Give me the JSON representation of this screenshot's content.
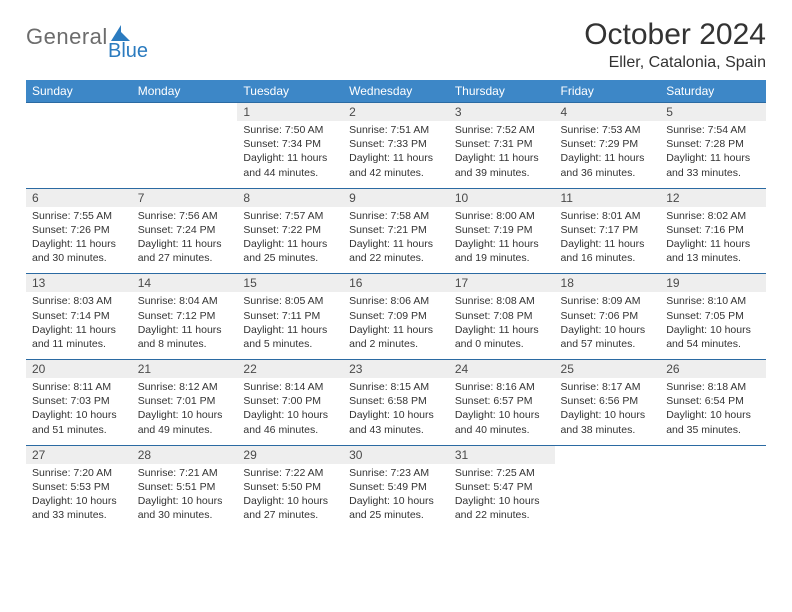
{
  "logo": {
    "part1": "General",
    "part2": "Blue"
  },
  "title": "October 2024",
  "subtitle": "Eller, Catalonia, Spain",
  "colors": {
    "headerBg": "#3d87c7",
    "headerText": "#ffffff",
    "dayBg": "#eeeeee",
    "rowBorder": "#2b6aa2",
    "bodyText": "#333333",
    "logoGray": "#6c6c6c",
    "logoBlue": "#2b7bbf"
  },
  "daysOfWeek": [
    "Sunday",
    "Monday",
    "Tuesday",
    "Wednesday",
    "Thursday",
    "Friday",
    "Saturday"
  ],
  "weeks": [
    [
      null,
      null,
      {
        "n": "1",
        "sr": "Sunrise: 7:50 AM",
        "ss": "Sunset: 7:34 PM",
        "dl": "Daylight: 11 hours and 44 minutes."
      },
      {
        "n": "2",
        "sr": "Sunrise: 7:51 AM",
        "ss": "Sunset: 7:33 PM",
        "dl": "Daylight: 11 hours and 42 minutes."
      },
      {
        "n": "3",
        "sr": "Sunrise: 7:52 AM",
        "ss": "Sunset: 7:31 PM",
        "dl": "Daylight: 11 hours and 39 minutes."
      },
      {
        "n": "4",
        "sr": "Sunrise: 7:53 AM",
        "ss": "Sunset: 7:29 PM",
        "dl": "Daylight: 11 hours and 36 minutes."
      },
      {
        "n": "5",
        "sr": "Sunrise: 7:54 AM",
        "ss": "Sunset: 7:28 PM",
        "dl": "Daylight: 11 hours and 33 minutes."
      }
    ],
    [
      {
        "n": "6",
        "sr": "Sunrise: 7:55 AM",
        "ss": "Sunset: 7:26 PM",
        "dl": "Daylight: 11 hours and 30 minutes."
      },
      {
        "n": "7",
        "sr": "Sunrise: 7:56 AM",
        "ss": "Sunset: 7:24 PM",
        "dl": "Daylight: 11 hours and 27 minutes."
      },
      {
        "n": "8",
        "sr": "Sunrise: 7:57 AM",
        "ss": "Sunset: 7:22 PM",
        "dl": "Daylight: 11 hours and 25 minutes."
      },
      {
        "n": "9",
        "sr": "Sunrise: 7:58 AM",
        "ss": "Sunset: 7:21 PM",
        "dl": "Daylight: 11 hours and 22 minutes."
      },
      {
        "n": "10",
        "sr": "Sunrise: 8:00 AM",
        "ss": "Sunset: 7:19 PM",
        "dl": "Daylight: 11 hours and 19 minutes."
      },
      {
        "n": "11",
        "sr": "Sunrise: 8:01 AM",
        "ss": "Sunset: 7:17 PM",
        "dl": "Daylight: 11 hours and 16 minutes."
      },
      {
        "n": "12",
        "sr": "Sunrise: 8:02 AM",
        "ss": "Sunset: 7:16 PM",
        "dl": "Daylight: 11 hours and 13 minutes."
      }
    ],
    [
      {
        "n": "13",
        "sr": "Sunrise: 8:03 AM",
        "ss": "Sunset: 7:14 PM",
        "dl": "Daylight: 11 hours and 11 minutes."
      },
      {
        "n": "14",
        "sr": "Sunrise: 8:04 AM",
        "ss": "Sunset: 7:12 PM",
        "dl": "Daylight: 11 hours and 8 minutes."
      },
      {
        "n": "15",
        "sr": "Sunrise: 8:05 AM",
        "ss": "Sunset: 7:11 PM",
        "dl": "Daylight: 11 hours and 5 minutes."
      },
      {
        "n": "16",
        "sr": "Sunrise: 8:06 AM",
        "ss": "Sunset: 7:09 PM",
        "dl": "Daylight: 11 hours and 2 minutes."
      },
      {
        "n": "17",
        "sr": "Sunrise: 8:08 AM",
        "ss": "Sunset: 7:08 PM",
        "dl": "Daylight: 11 hours and 0 minutes."
      },
      {
        "n": "18",
        "sr": "Sunrise: 8:09 AM",
        "ss": "Sunset: 7:06 PM",
        "dl": "Daylight: 10 hours and 57 minutes."
      },
      {
        "n": "19",
        "sr": "Sunrise: 8:10 AM",
        "ss": "Sunset: 7:05 PM",
        "dl": "Daylight: 10 hours and 54 minutes."
      }
    ],
    [
      {
        "n": "20",
        "sr": "Sunrise: 8:11 AM",
        "ss": "Sunset: 7:03 PM",
        "dl": "Daylight: 10 hours and 51 minutes."
      },
      {
        "n": "21",
        "sr": "Sunrise: 8:12 AM",
        "ss": "Sunset: 7:01 PM",
        "dl": "Daylight: 10 hours and 49 minutes."
      },
      {
        "n": "22",
        "sr": "Sunrise: 8:14 AM",
        "ss": "Sunset: 7:00 PM",
        "dl": "Daylight: 10 hours and 46 minutes."
      },
      {
        "n": "23",
        "sr": "Sunrise: 8:15 AM",
        "ss": "Sunset: 6:58 PM",
        "dl": "Daylight: 10 hours and 43 minutes."
      },
      {
        "n": "24",
        "sr": "Sunrise: 8:16 AM",
        "ss": "Sunset: 6:57 PM",
        "dl": "Daylight: 10 hours and 40 minutes."
      },
      {
        "n": "25",
        "sr": "Sunrise: 8:17 AM",
        "ss": "Sunset: 6:56 PM",
        "dl": "Daylight: 10 hours and 38 minutes."
      },
      {
        "n": "26",
        "sr": "Sunrise: 8:18 AM",
        "ss": "Sunset: 6:54 PM",
        "dl": "Daylight: 10 hours and 35 minutes."
      }
    ],
    [
      {
        "n": "27",
        "sr": "Sunrise: 7:20 AM",
        "ss": "Sunset: 5:53 PM",
        "dl": "Daylight: 10 hours and 33 minutes."
      },
      {
        "n": "28",
        "sr": "Sunrise: 7:21 AM",
        "ss": "Sunset: 5:51 PM",
        "dl": "Daylight: 10 hours and 30 minutes."
      },
      {
        "n": "29",
        "sr": "Sunrise: 7:22 AM",
        "ss": "Sunset: 5:50 PM",
        "dl": "Daylight: 10 hours and 27 minutes."
      },
      {
        "n": "30",
        "sr": "Sunrise: 7:23 AM",
        "ss": "Sunset: 5:49 PM",
        "dl": "Daylight: 10 hours and 25 minutes."
      },
      {
        "n": "31",
        "sr": "Sunrise: 7:25 AM",
        "ss": "Sunset: 5:47 PM",
        "dl": "Daylight: 10 hours and 22 minutes."
      },
      null,
      null
    ]
  ]
}
